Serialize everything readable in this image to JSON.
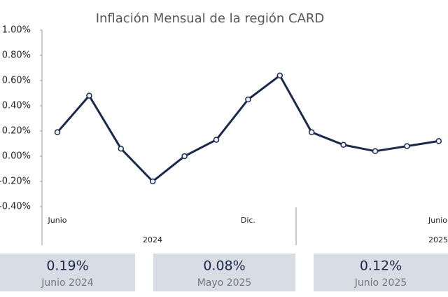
{
  "chart_data": {
    "type": "line",
    "title": "Inflación Mensual de la región CARD",
    "categories": [
      "Junio",
      null,
      null,
      null,
      null,
      null,
      "Dic.",
      null,
      null,
      null,
      null,
      null,
      "Junio"
    ],
    "groups": [
      "2024",
      "2025"
    ],
    "series": [
      {
        "name": "Inflación mensual",
        "color": "#1b2a4a",
        "values": [
          0.19,
          0.48,
          0.06,
          -0.2,
          0.0,
          0.13,
          0.45,
          0.64,
          0.19,
          0.09,
          0.04,
          0.08,
          0.12
        ]
      }
    ],
    "ylim": [
      -0.4,
      1.0
    ],
    "yticks": [
      {
        "value": 1.0,
        "label": "1.00%"
      },
      {
        "value": 0.8,
        "label": "0.80%"
      },
      {
        "value": 0.6,
        "label": "0.60%"
      },
      {
        "value": 0.4,
        "label": "0.40%"
      },
      {
        "value": 0.2,
        "label": "0.20%"
      },
      {
        "value": 0,
        "label": "0.00%"
      },
      {
        "value": -0.2,
        "label": "-0.20%"
      },
      {
        "value": -0.4,
        "label": "-0.40%"
      }
    ],
    "grid": false
  },
  "highlights": [
    {
      "value": "0.19%",
      "label": "Junio 2024"
    },
    {
      "value": "0.08%",
      "label": "Mayo 2025"
    },
    {
      "value": "0.12%",
      "label": "Junio 2025"
    }
  ]
}
